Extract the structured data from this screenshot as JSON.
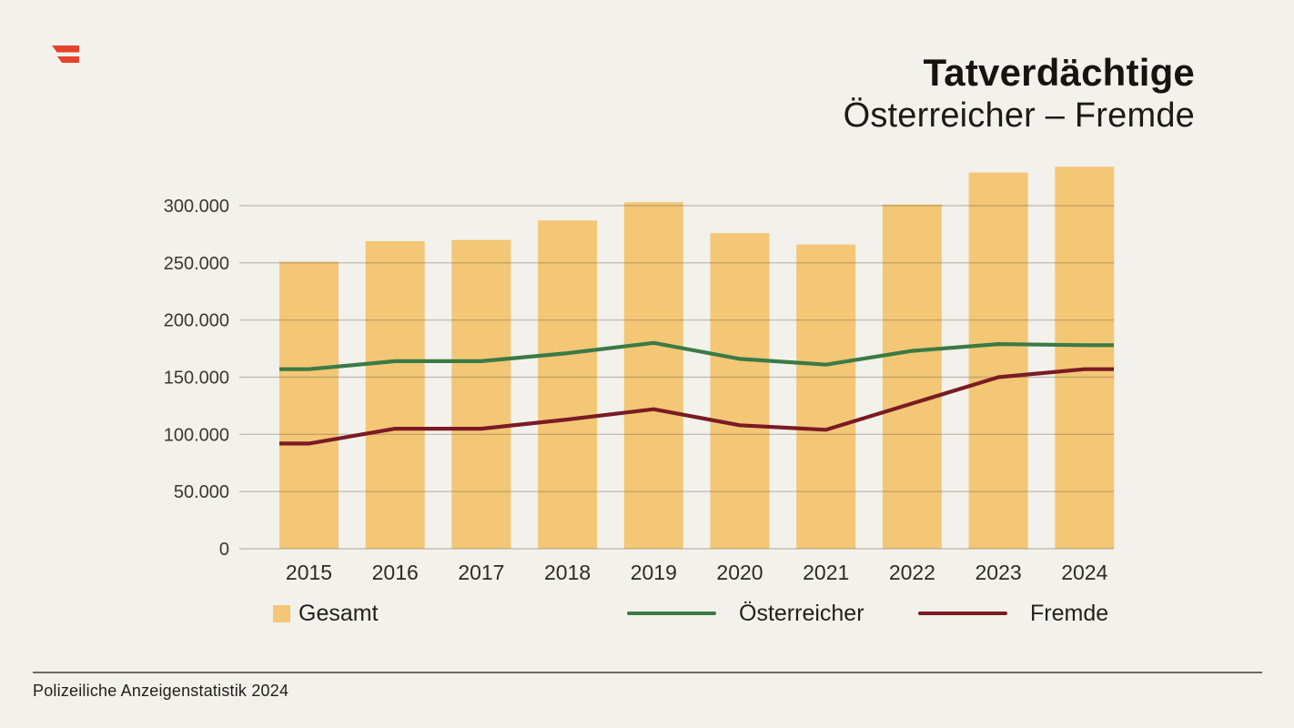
{
  "page": {
    "background": "#F3F1EB"
  },
  "logo": {
    "description": "austrian-flag-logo",
    "color": "#E5432B"
  },
  "header": {
    "title": "Tatverdächtige",
    "subtitle": "Österreicher – Fremde"
  },
  "chart_data": {
    "type": "bar+line",
    "title": "Tatverdächtige",
    "subtitle": "Österreicher – Fremde",
    "categories": [
      "2015",
      "2016",
      "2017",
      "2018",
      "2019",
      "2020",
      "2021",
      "2022",
      "2023",
      "2024"
    ],
    "series": [
      {
        "name": "Gesamt",
        "type": "bar",
        "color": "#F3C775",
        "values": [
          251000,
          269000,
          270000,
          287000,
          303000,
          276000,
          266000,
          301000,
          329000,
          334000
        ]
      },
      {
        "name": "Österreicher",
        "type": "line",
        "color": "#3B7A45",
        "values": [
          157000,
          164000,
          164000,
          171000,
          180000,
          166000,
          161000,
          173000,
          179000,
          178000
        ]
      },
      {
        "name": "Fremde",
        "type": "line",
        "color": "#7A1B24",
        "values": [
          92000,
          105000,
          105000,
          113000,
          122000,
          108000,
          104000,
          127000,
          150000,
          157000
        ]
      }
    ],
    "yticks": [
      0,
      50000,
      100000,
      150000,
      200000,
      250000,
      300000
    ],
    "ytick_labels": [
      "0",
      "50.000",
      "100.000",
      "150.000",
      "200.000",
      "250.000",
      "300.000"
    ],
    "ylim": [
      0,
      340000
    ],
    "xlabel": "",
    "ylabel": "",
    "grid": true,
    "gridline_color": "rgba(95,88,76,0.32)",
    "legend_position": "bottom",
    "number_format": "de-thousands-dot"
  },
  "legend": {
    "items": [
      {
        "label": "Gesamt",
        "swatch": "square"
      },
      {
        "label": "Österreicher",
        "swatch": "line"
      },
      {
        "label": "Fremde",
        "swatch": "line"
      }
    ]
  },
  "footer": {
    "source": "Polizeiliche Anzeigenstatistik 2024"
  }
}
